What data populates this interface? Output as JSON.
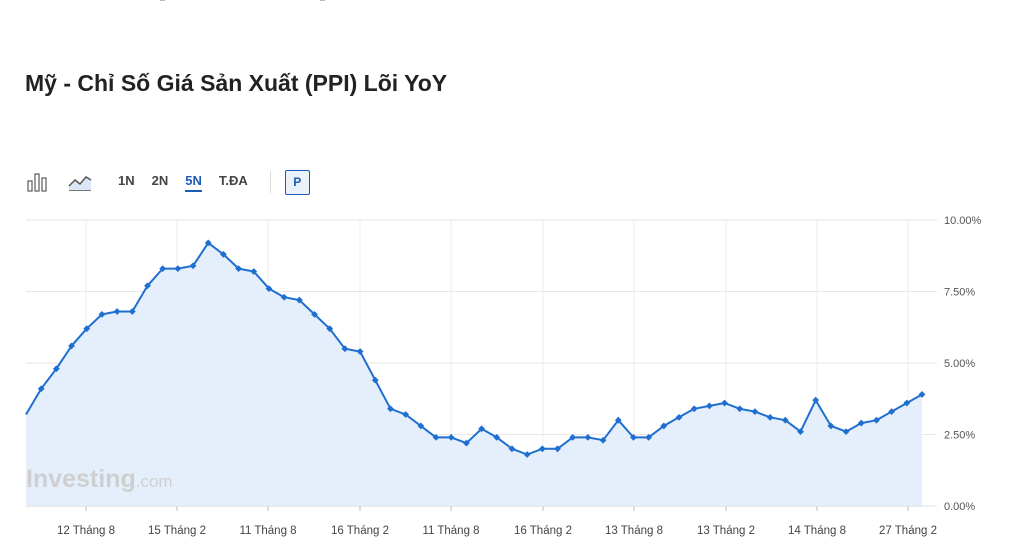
{
  "title": "Mỹ - Chỉ Số Giá Sản Xuất (PPI) Lõi YoY",
  "toolbar": {
    "ranges": [
      "1N",
      "2N",
      "5N",
      "T.ĐA"
    ],
    "active_range": "5N",
    "p_label": "P",
    "icons": [
      "bar-chart-icon",
      "area-chart-icon"
    ]
  },
  "watermark": {
    "brand": "Investing",
    "suffix": ".com"
  },
  "colors": {
    "line": "#1f6fd1",
    "fill": "#e4effb",
    "accent": "#1a5bb4"
  },
  "chart_data": {
    "type": "area",
    "title": "Mỹ - Chỉ Số Giá Sản Xuất (PPI) Lõi YoY",
    "xlabel": "",
    "ylabel": "",
    "x_tick_labels": [
      "12 Tháng 8",
      "15 Tháng 2",
      "11 Tháng 8",
      "16 Tháng 2",
      "11 Tháng 8",
      "16 Tháng 2",
      "13 Tháng 8",
      "13 Tháng 2",
      "14 Tháng 8",
      "27 Tháng 2"
    ],
    "y_tick_labels": [
      "10.00%",
      "7.50%",
      "5.00%",
      "2.50%",
      "0.00%"
    ],
    "ylim": [
      0,
      10
    ],
    "grid": true,
    "series": [
      {
        "values": [
          3.2,
          4.1,
          4.8,
          5.6,
          6.2,
          6.7,
          6.8,
          6.8,
          7.7,
          8.3,
          8.3,
          8.4,
          9.2,
          8.8,
          8.3,
          8.2,
          7.6,
          7.3,
          7.2,
          6.7,
          6.2,
          5.5,
          5.4,
          4.4,
          3.4,
          3.2,
          2.8,
          2.4,
          2.4,
          2.2,
          2.7,
          2.4,
          2.0,
          1.8,
          2.0,
          2.0,
          2.4,
          2.4,
          2.3,
          3.0,
          2.4,
          2.4,
          2.8,
          3.1,
          3.4,
          3.5,
          3.6,
          3.4,
          3.3,
          3.1,
          3.0,
          2.6,
          3.7,
          2.8,
          2.6,
          2.9,
          3.0,
          3.3,
          3.6,
          3.9
        ]
      }
    ]
  }
}
